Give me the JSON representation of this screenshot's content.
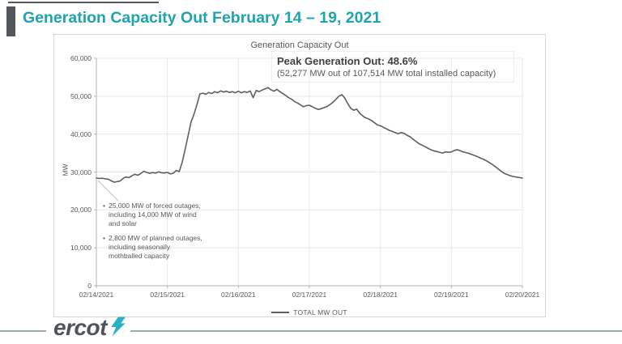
{
  "header": {
    "title": "Generation Capacity Out February 14 – 19, 2021"
  },
  "chart_data": {
    "type": "line",
    "title": "Generation Capacity Out",
    "ylabel": "MW",
    "ylim": [
      0,
      60000
    ],
    "yticks": [
      0,
      10000,
      20000,
      30000,
      40000,
      50000,
      60000
    ],
    "ytick_labels": [
      "0",
      "10,000",
      "20,000",
      "30,000",
      "40,000",
      "50,000",
      "60,000"
    ],
    "x": [
      "02/14/2021",
      "02/15/2021",
      "02/16/2021",
      "02/17/2021",
      "02/18/2021",
      "02/19/2021",
      "02/20/2021"
    ],
    "grid": true,
    "legend_position": "bottom",
    "annotations": {
      "peak_headline": "Peak Generation Out: 48.6%",
      "peak_detail": "(52,277 MW out of 107,514 MW total installed capacity)",
      "notes": [
        "25,000 MW of forced outages, including 14,000 MW of wind and solar",
        "2,800 MW of planned outages, including seasonally mothballed capacity"
      ]
    },
    "series": [
      {
        "name": "TOTAL MW OUT",
        "color": "#596066",
        "start": "02/14/2021 00:00",
        "interval_hours": 1,
        "values": [
          28400,
          28300,
          28350,
          28200,
          28100,
          27700,
          27300,
          27450,
          27600,
          28300,
          28700,
          28500,
          29000,
          29400,
          29150,
          29600,
          30200,
          29900,
          29650,
          29850,
          29700,
          30050,
          29800,
          29750,
          29900,
          29500,
          29650,
          30400,
          30100,
          32500,
          36000,
          39500,
          43200,
          45200,
          47800,
          50600,
          50800,
          50500,
          51000,
          50700,
          51200,
          50900,
          51400,
          51100,
          51300,
          51000,
          51200,
          50900,
          51300,
          50900,
          51200,
          51000,
          51400,
          49600,
          51500,
          51200,
          51600,
          51900,
          52277,
          51700,
          51300,
          51800,
          51200,
          50700,
          50200,
          49600,
          49200,
          48600,
          48200,
          47700,
          47200,
          47500,
          47600,
          47200,
          46800,
          46500,
          46700,
          47000,
          47300,
          47800,
          48400,
          49200,
          50000,
          50400,
          49500,
          48000,
          46800,
          46300,
          46600,
          45500,
          44800,
          44300,
          44000,
          43600,
          43000,
          42400,
          42200,
          41800,
          41400,
          41000,
          40700,
          40400,
          40100,
          40400,
          40200,
          39700,
          39300,
          38700,
          38100,
          37500,
          37100,
          36700,
          36300,
          35900,
          35600,
          35400,
          35200,
          35000,
          35300,
          35200,
          35300,
          35700,
          35900,
          35600,
          35300,
          35100,
          34900,
          34600,
          34300,
          34000,
          33600,
          33300,
          32900,
          32400,
          31900,
          31300,
          30700,
          30100,
          29600,
          29300,
          29000,
          28800,
          28650,
          28550,
          28400
        ]
      }
    ]
  },
  "footer": {
    "logo_text": "ercot"
  },
  "colors": {
    "accent_teal": "#1FA3AF",
    "slide_bar": "#53565A",
    "axis_text": "#595959",
    "gridline": "#E8E8E8",
    "axis_line": "#B3B3B3",
    "chart_border": "#D9D9D9",
    "leader_line": "#C2C2C2",
    "footer_rule": "#9BA9B0",
    "logo_text": "#4E545A",
    "logo_mark": "#27B1C5"
  }
}
